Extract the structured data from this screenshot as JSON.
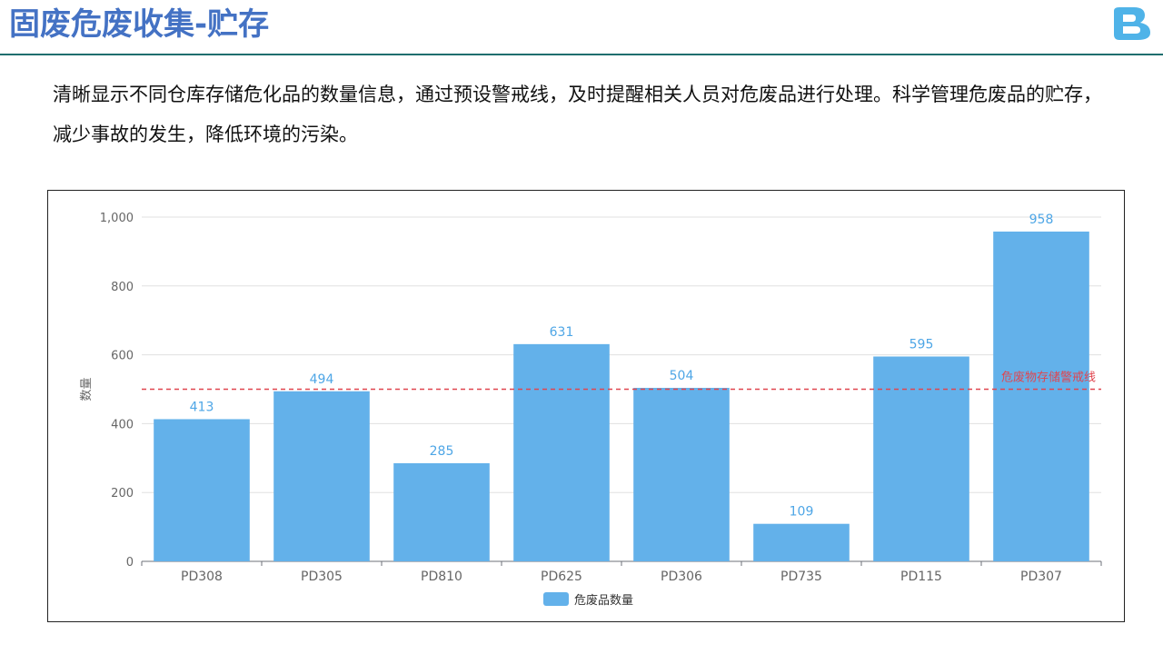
{
  "header": {
    "title": "固废危废收集-贮存"
  },
  "description": "清晰显示不同仓库存储危化品的数量信息，通过预设警戒线，及时提醒相关人员对危废品进行处理。科学管理危废品的贮存，减少事故的发生，降低环境的污染。",
  "colors": {
    "accent": "#4472c4",
    "bar": "#63b1ea",
    "warning_line": "#e0454f",
    "logo": "#4fb3e8"
  },
  "logo_icon": "brand-logo-icon",
  "chart_data": {
    "type": "bar",
    "categories": [
      "PD308",
      "PD305",
      "PD810",
      "PD625",
      "PD306",
      "PD735",
      "PD115",
      "PD307"
    ],
    "series": [
      {
        "name": "危废品数量",
        "values": [
          413,
          494,
          285,
          631,
          504,
          109,
          595,
          958
        ]
      }
    ],
    "ylabel": "数量",
    "ylim": [
      0,
      1000
    ],
    "yticks": [
      0,
      200,
      400,
      600,
      800,
      1000
    ],
    "ytick_labels": [
      "0",
      "200",
      "400",
      "600",
      "800",
      "1,000"
    ],
    "grid": true,
    "legend": "bottom-center",
    "threshold": {
      "value": 500,
      "label": "危废物存储警戒线"
    }
  }
}
